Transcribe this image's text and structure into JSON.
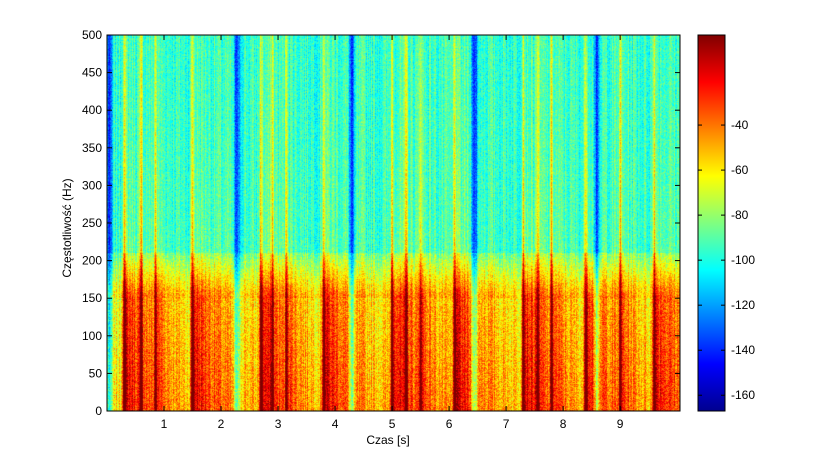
{
  "chart_data": {
    "type": "heatmap",
    "title": "",
    "xlabel": "Czas [s]",
    "ylabel": "Częstotliwość (Hz)",
    "xlim": [
      0,
      10.05
    ],
    "ylim": [
      0,
      500
    ],
    "x_ticks": [
      1,
      2,
      3,
      4,
      5,
      6,
      7,
      8,
      9
    ],
    "y_ticks": [
      0,
      50,
      100,
      150,
      200,
      250,
      300,
      350,
      400,
      450,
      500
    ],
    "colormap": "jet",
    "colorbar": {
      "range": [
        -167,
        0
      ],
      "ticks": [
        -40,
        -60,
        -80,
        -100,
        -120,
        -140,
        -160
      ]
    },
    "strong_onsets_s": [
      0.3,
      1.5,
      2.7,
      3.8,
      5.0,
      6.1,
      7.3,
      8.4,
      9.6
    ],
    "secondary_onsets_s": [
      0.6,
      0.85,
      2.9,
      3.15,
      5.25,
      5.5,
      7.55,
      7.8,
      9.0
    ],
    "quiet_gaps_s": [
      0.05,
      2.28,
      4.3,
      6.45,
      8.6
    ],
    "grid": false,
    "legend": "none"
  }
}
